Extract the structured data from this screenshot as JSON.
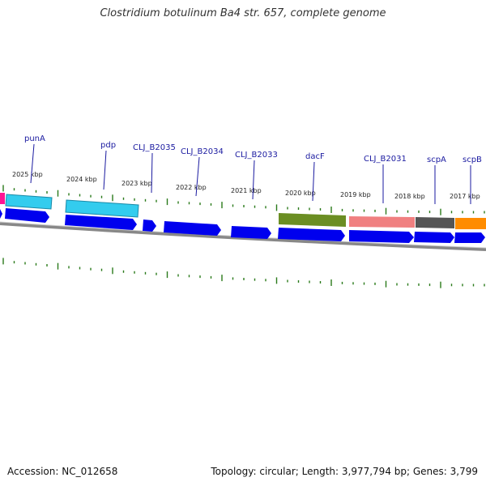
{
  "title": "Clostridium botulinum Ba4 str. 657, complete genome",
  "footer": {
    "accession": "Accession: NC_012658",
    "summary": "Topology: circular; Length: 3,977,794 bp; Genes: 3,799"
  },
  "colors": {
    "cds": "#0000ee",
    "backbone": "#888888",
    "gene_label": "#1a1aa0",
    "tick": "#2a7a1a"
  },
  "kbp_labels": [
    "2025 kbp",
    "2024 kbp",
    "2023 kbp",
    "2022 kbp",
    "2021 kbp",
    "2020 kbp",
    "2019 kbp",
    "2018 kbp",
    "2017 kbp"
  ],
  "gene_labels": [
    "punA",
    "pdp",
    "CLJ_B2035",
    "CLJ_B2034",
    "CLJ_B2033",
    "dacF",
    "CLJ_B2031",
    "scpA",
    "scpB"
  ],
  "feature_colors": [
    "#ff1493",
    "#33ccee",
    "#33ccee",
    "#6b8e23",
    "#f08080",
    "#555555",
    "#ff8c00"
  ]
}
